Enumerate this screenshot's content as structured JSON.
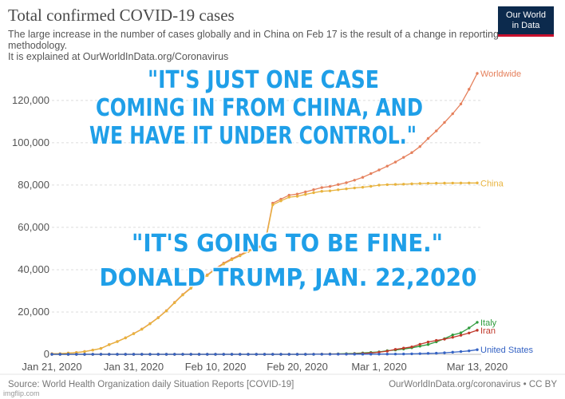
{
  "chart_data": {
    "type": "line",
    "title": "Total confirmed COVID-19 cases",
    "subtitle": [
      "The large increase in the number of cases globally and in China on Feb 17 is the result of a change in reporting",
      "methodology.",
      "It is explained at OurWorldInData.org/Coronavirus"
    ],
    "logo": [
      "Our World",
      "in Data"
    ],
    "source": "Source: World Health Organization daily Situation Reports [COVID-19]",
    "source_url": "OurWorldInData.org/coronavirus • CC BY",
    "watermark": "imgflip.com",
    "annotations": [
      "\"IT'S JUST ONE CASE",
      "COMING IN FROM CHINA, AND",
      "WE HAVE IT UNDER CONTROL.\"",
      "\"IT'S GOING TO BE FINE.\"",
      "DONALD TRUMP, JAN. 22,2020"
    ],
    "x": [
      "Jan 21, 2020",
      "Jan 22, 2020",
      "Jan 23, 2020",
      "Jan 24, 2020",
      "Jan 25, 2020",
      "Jan 26, 2020",
      "Jan 27, 2020",
      "Jan 28, 2020",
      "Jan 29, 2020",
      "Jan 30, 2020",
      "Jan 31, 2020",
      "Feb 1, 2020",
      "Feb 2, 2020",
      "Feb 3, 2020",
      "Feb 4, 2020",
      "Feb 5, 2020",
      "Feb 6, 2020",
      "Feb 7, 2020",
      "Feb 8, 2020",
      "Feb 9, 2020",
      "Feb 10, 2020",
      "Feb 11, 2020",
      "Feb 12, 2020",
      "Feb 13, 2020",
      "Feb 14, 2020",
      "Feb 15, 2020",
      "Feb 16, 2020",
      "Feb 17, 2020",
      "Feb 18, 2020",
      "Feb 19, 2020",
      "Feb 20, 2020",
      "Feb 21, 2020",
      "Feb 22, 2020",
      "Feb 23, 2020",
      "Feb 24, 2020",
      "Feb 25, 2020",
      "Feb 26, 2020",
      "Feb 27, 2020",
      "Feb 28, 2020",
      "Feb 29, 2020",
      "Mar 1, 2020",
      "Mar 2, 2020",
      "Mar 3, 2020",
      "Mar 4, 2020",
      "Mar 5, 2020",
      "Mar 6, 2020",
      "Mar 7, 2020",
      "Mar 8, 2020",
      "Mar 9, 2020",
      "Mar 10, 2020",
      "Mar 11, 2020",
      "Mar 12, 2020",
      "Mar 13, 2020"
    ],
    "xticks": [
      "Jan 21, 2020",
      "Jan 31, 2020",
      "Feb 10, 2020",
      "Feb 20, 2020",
      "Mar 1, 2020",
      "Mar 13, 2020"
    ],
    "ylim": [
      0,
      132758
    ],
    "yticks": [
      0,
      {
        "value": 20000,
        "label": "20,000"
      },
      {
        "value": 40000,
        "label": "40,000"
      },
      {
        "value": 60000,
        "label": "60,000"
      },
      {
        "value": 80000,
        "label": "80,000"
      },
      {
        "value": 100000,
        "label": "100,000"
      },
      {
        "value": 120000,
        "label": "120,000"
      }
    ],
    "grid": true,
    "series": [
      {
        "name": "Worldwide",
        "color": "#e5805c",
        "values": [
          282,
          314,
          581,
          846,
          1320,
          2014,
          2798,
          4593,
          6065,
          7818,
          9826,
          11953,
          14557,
          17391,
          20630,
          24554,
          28276,
          31481,
          34886,
          37558,
          40554,
          43103,
          45171,
          46997,
          49053,
          50580,
          51857,
          71429,
          73332,
          75204,
          75748,
          76769,
          77794,
          78811,
          79331,
          80239,
          81109,
          82294,
          83652,
          85403,
          87137,
          88948,
          90870,
          93090,
          95324,
          98192,
          102019,
          105586,
          109577,
          113702,
          118319,
          125260,
          132758
        ]
      },
      {
        "name": "China",
        "color": "#e8b33e",
        "values": [
          278,
          309,
          571,
          830,
          1297,
          1985,
          2761,
          4537,
          5997,
          7736,
          9720,
          11821,
          14411,
          17238,
          20471,
          24363,
          28060,
          31211,
          34598,
          37251,
          40235,
          42708,
          44730,
          46550,
          48548,
          50054,
          51174,
          70635,
          72528,
          74280,
          74675,
          75569,
          76392,
          77042,
          77262,
          77780,
          78191,
          78630,
          78961,
          79394,
          79968,
          80174,
          80304,
          80422,
          80565,
          80711,
          80813,
          80859,
          80904,
          80924,
          80955,
          80981,
          80991
        ]
      },
      {
        "name": "Italy",
        "color": "#2e9b3c",
        "values": [
          0,
          0,
          0,
          0,
          0,
          0,
          0,
          0,
          0,
          0,
          2,
          2,
          2,
          2,
          2,
          2,
          2,
          3,
          3,
          3,
          3,
          3,
          3,
          3,
          3,
          3,
          3,
          3,
          3,
          3,
          3,
          3,
          20,
          62,
          155,
          229,
          322,
          400,
          650,
          888,
          1128,
          1694,
          2036,
          2502,
          3089,
          3858,
          4636,
          5883,
          7375,
          9172,
          10149,
          12462,
          15113
        ]
      },
      {
        "name": "Iran",
        "color": "#c0392b",
        "values": [
          0,
          0,
          0,
          0,
          0,
          0,
          0,
          0,
          0,
          0,
          0,
          0,
          0,
          0,
          0,
          0,
          0,
          0,
          0,
          0,
          0,
          0,
          0,
          0,
          0,
          0,
          0,
          0,
          0,
          2,
          5,
          18,
          28,
          43,
          61,
          95,
          139,
          245,
          388,
          593,
          978,
          1501,
          2336,
          2922,
          3513,
          4747,
          5823,
          6566,
          7161,
          8042,
          9000,
          10075,
          11364
        ]
      },
      {
        "name": "United States",
        "color": "#3563c4",
        "values": [
          1,
          1,
          1,
          2,
          2,
          5,
          5,
          5,
          5,
          6,
          7,
          8,
          11,
          11,
          11,
          12,
          12,
          12,
          12,
          12,
          13,
          13,
          14,
          15,
          15,
          15,
          15,
          15,
          15,
          15,
          15,
          15,
          35,
          35,
          35,
          53,
          53,
          59,
          60,
          62,
          75,
          100,
          124,
          158,
          221,
          319,
          435,
          541,
          704,
          994,
          1301,
          1630,
          2183
        ]
      }
    ]
  }
}
